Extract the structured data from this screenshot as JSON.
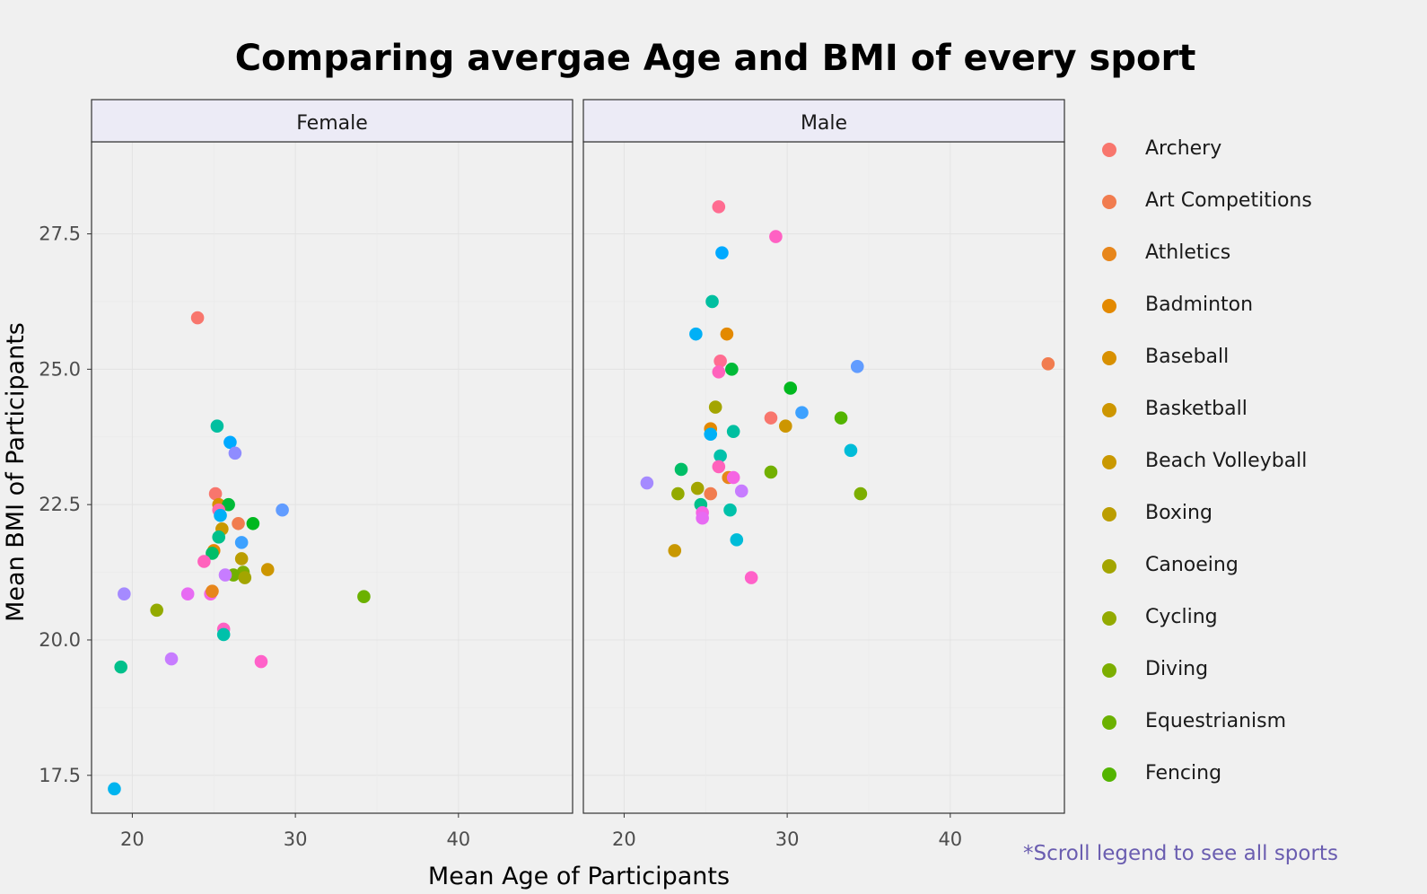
{
  "chart_data": {
    "type": "scatter",
    "title": "Comparing avergae Age and BMI of every sport",
    "xlabel": "Mean Age of Participants",
    "ylabel": "Mean BMI of Participants",
    "xlim": [
      17.5,
      47
    ],
    "ylim": [
      16.8,
      29.2
    ],
    "x_ticks": [
      "20",
      "30",
      "40"
    ],
    "y_ticks": [
      "17.5",
      "20.0",
      "22.5",
      "25.0",
      "27.5"
    ],
    "grid": true,
    "legend_position": "right",
    "panels": [
      {
        "name": "Female",
        "points": [
          {
            "x": 24.0,
            "y": 25.95,
            "color": "#F8766D"
          },
          {
            "x": 25.2,
            "y": 23.95,
            "color": "#00BFA0"
          },
          {
            "x": 26.0,
            "y": 23.65,
            "color": "#00A9FF"
          },
          {
            "x": 26.3,
            "y": 23.45,
            "color": "#8F8CFF"
          },
          {
            "x": 25.1,
            "y": 22.7,
            "color": "#F8766D"
          },
          {
            "x": 25.3,
            "y": 22.5,
            "color": "#D89000"
          },
          {
            "x": 25.9,
            "y": 22.5,
            "color": "#00BA38"
          },
          {
            "x": 25.3,
            "y": 22.4,
            "color": "#FF6AA8"
          },
          {
            "x": 25.4,
            "y": 22.3,
            "color": "#00B0F6"
          },
          {
            "x": 29.2,
            "y": 22.4,
            "color": "#619CFF"
          },
          {
            "x": 26.5,
            "y": 22.15,
            "color": "#F17C4F"
          },
          {
            "x": 27.4,
            "y": 22.15,
            "color": "#00B81F"
          },
          {
            "x": 25.5,
            "y": 22.05,
            "color": "#C99800"
          },
          {
            "x": 25.3,
            "y": 21.9,
            "color": "#00C08B"
          },
          {
            "x": 26.7,
            "y": 21.8,
            "color": "#3DA1FF"
          },
          {
            "x": 25.0,
            "y": 21.65,
            "color": "#E38900"
          },
          {
            "x": 24.9,
            "y": 21.6,
            "color": "#00BE67"
          },
          {
            "x": 26.7,
            "y": 21.5,
            "color": "#BB9D00"
          },
          {
            "x": 24.4,
            "y": 21.45,
            "color": "#FF62BC"
          },
          {
            "x": 28.3,
            "y": 21.3,
            "color": "#CD9600"
          },
          {
            "x": 26.8,
            "y": 21.25,
            "color": "#7CAE00"
          },
          {
            "x": 26.2,
            "y": 21.2,
            "color": "#72B000"
          },
          {
            "x": 25.7,
            "y": 21.2,
            "color": "#C77CFF"
          },
          {
            "x": 26.9,
            "y": 21.15,
            "color": "#A3A500"
          },
          {
            "x": 19.5,
            "y": 20.85,
            "color": "#A58AFF"
          },
          {
            "x": 23.4,
            "y": 20.85,
            "color": "#E76BF3"
          },
          {
            "x": 24.8,
            "y": 20.85,
            "color": "#F564E3"
          },
          {
            "x": 24.9,
            "y": 20.9,
            "color": "#E7861B"
          },
          {
            "x": 21.5,
            "y": 20.55,
            "color": "#93AA00"
          },
          {
            "x": 34.2,
            "y": 20.8,
            "color": "#6BB100"
          },
          {
            "x": 25.6,
            "y": 20.2,
            "color": "#FF61C3"
          },
          {
            "x": 25.6,
            "y": 20.1,
            "color": "#00C1AA"
          },
          {
            "x": 22.4,
            "y": 19.65,
            "color": "#C77CFF"
          },
          {
            "x": 27.9,
            "y": 19.6,
            "color": "#FF61C9"
          },
          {
            "x": 19.3,
            "y": 19.5,
            "color": "#00C08B"
          },
          {
            "x": 18.9,
            "y": 17.25,
            "color": "#00B4EF"
          }
        ]
      },
      {
        "name": "Male",
        "points": [
          {
            "x": 25.8,
            "y": 28.0,
            "color": "#FF6C91"
          },
          {
            "x": 29.3,
            "y": 27.45,
            "color": "#FF61C3"
          },
          {
            "x": 26.0,
            "y": 27.15,
            "color": "#00A9FF"
          },
          {
            "x": 25.4,
            "y": 26.25,
            "color": "#00BFA0"
          },
          {
            "x": 26.3,
            "y": 25.65,
            "color": "#E38900"
          },
          {
            "x": 24.4,
            "y": 25.65,
            "color": "#00B0F6"
          },
          {
            "x": 25.9,
            "y": 25.15,
            "color": "#FF6C91"
          },
          {
            "x": 25.8,
            "y": 24.95,
            "color": "#FF62BC"
          },
          {
            "x": 26.6,
            "y": 25.0,
            "color": "#00BA38"
          },
          {
            "x": 34.3,
            "y": 25.05,
            "color": "#619CFF"
          },
          {
            "x": 46.0,
            "y": 25.1,
            "color": "#F17C4F"
          },
          {
            "x": 30.2,
            "y": 24.65,
            "color": "#00B81F"
          },
          {
            "x": 25.6,
            "y": 24.3,
            "color": "#A3A500"
          },
          {
            "x": 30.9,
            "y": 24.2,
            "color": "#3DA1FF"
          },
          {
            "x": 29.0,
            "y": 24.1,
            "color": "#F8766D"
          },
          {
            "x": 33.3,
            "y": 24.1,
            "color": "#53B400"
          },
          {
            "x": 29.9,
            "y": 23.95,
            "color": "#CD9600"
          },
          {
            "x": 25.3,
            "y": 23.9,
            "color": "#E38900"
          },
          {
            "x": 25.3,
            "y": 23.8,
            "color": "#00B0F6"
          },
          {
            "x": 26.7,
            "y": 23.85,
            "color": "#00BFA0"
          },
          {
            "x": 25.9,
            "y": 23.4,
            "color": "#00C1AA"
          },
          {
            "x": 33.9,
            "y": 23.5,
            "color": "#00BCD8"
          },
          {
            "x": 25.8,
            "y": 23.2,
            "color": "#FF62BC"
          },
          {
            "x": 23.5,
            "y": 23.15,
            "color": "#00BE67"
          },
          {
            "x": 29.0,
            "y": 23.1,
            "color": "#72B000"
          },
          {
            "x": 26.4,
            "y": 23.0,
            "color": "#E7861B"
          },
          {
            "x": 26.7,
            "y": 23.0,
            "color": "#F564E3"
          },
          {
            "x": 21.4,
            "y": 22.9,
            "color": "#A58AFF"
          },
          {
            "x": 24.5,
            "y": 22.8,
            "color": "#A3A500"
          },
          {
            "x": 27.2,
            "y": 22.75,
            "color": "#C77CFF"
          },
          {
            "x": 23.3,
            "y": 22.7,
            "color": "#93AA00"
          },
          {
            "x": 34.5,
            "y": 22.7,
            "color": "#7CAE00"
          },
          {
            "x": 25.3,
            "y": 22.7,
            "color": "#F17C4F"
          },
          {
            "x": 24.7,
            "y": 22.5,
            "color": "#00C08B"
          },
          {
            "x": 26.5,
            "y": 22.4,
            "color": "#00C1AA"
          },
          {
            "x": 24.8,
            "y": 22.35,
            "color": "#F564E3"
          },
          {
            "x": 24.8,
            "y": 22.25,
            "color": "#E76BF3"
          },
          {
            "x": 26.9,
            "y": 21.85,
            "color": "#00BCD8"
          },
          {
            "x": 23.1,
            "y": 21.65,
            "color": "#C99800"
          },
          {
            "x": 27.8,
            "y": 21.15,
            "color": "#FF61C9"
          }
        ]
      }
    ],
    "legend": [
      {
        "label": "Archery",
        "color": "#F8766D"
      },
      {
        "label": "Art Competitions",
        "color": "#F17C4F"
      },
      {
        "label": "Athletics",
        "color": "#E7861B"
      },
      {
        "label": "Badminton",
        "color": "#E38900"
      },
      {
        "label": "Baseball",
        "color": "#D89000"
      },
      {
        "label": "Basketball",
        "color": "#CD9600"
      },
      {
        "label": "Beach Volleyball",
        "color": "#C99800"
      },
      {
        "label": "Boxing",
        "color": "#BB9D00"
      },
      {
        "label": "Canoeing",
        "color": "#A3A500"
      },
      {
        "label": "Cycling",
        "color": "#93AA00"
      },
      {
        "label": "Diving",
        "color": "#7CAE00"
      },
      {
        "label": "Equestrianism",
        "color": "#6BB100"
      },
      {
        "label": "Fencing",
        "color": "#53B400"
      }
    ],
    "note": "*Scroll legend to see all sports"
  },
  "colors": {
    "background": "#f0f0f0",
    "strip": "#ecebf6",
    "note": "#6a5db0"
  }
}
